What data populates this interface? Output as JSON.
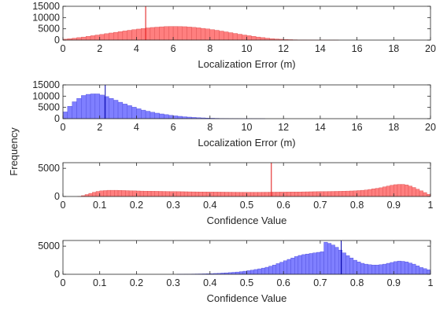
{
  "figure": {
    "ylabel": "Frequency"
  },
  "colors": {
    "red_fill": "#ff7f7f",
    "red_edge": "#d94a4a",
    "red_line": "#e01010",
    "blue_fill": "#7f7fff",
    "blue_edge": "#4a4ad9",
    "blue_line": "#0000aa",
    "axis": "#262626"
  },
  "chart_data": [
    {
      "type": "bar",
      "xlabel": "Localization Error (m)",
      "xlim": [
        0,
        20
      ],
      "ylim": [
        0,
        15000
      ],
      "xticks": [
        "0",
        "2",
        "4",
        "6",
        "8",
        "10",
        "12",
        "14",
        "16",
        "18",
        "20"
      ],
      "yticks": [
        "0",
        "5000",
        "10000",
        "15000"
      ],
      "bin_width": 0.25,
      "color": "red",
      "mean_line": 4.5,
      "values": [
        400,
        600,
        850,
        1100,
        1350,
        1650,
        1950,
        2250,
        2550,
        2850,
        3150,
        3450,
        3750,
        4050,
        4350,
        4650,
        4900,
        5150,
        5400,
        5600,
        5750,
        5900,
        6000,
        6050,
        6050,
        6000,
        5950,
        5800,
        5650,
        5450,
        5200,
        4950,
        4650,
        4350,
        4000,
        3650,
        3300,
        2950,
        2600,
        2250,
        1950,
        1650,
        1350,
        1100,
        850,
        650,
        500,
        380,
        280,
        200,
        140,
        100,
        70,
        50,
        35,
        25,
        18,
        12,
        8,
        5
      ]
    },
    {
      "type": "bar",
      "xlabel": "Localization Error (m)",
      "xlim": [
        0,
        20
      ],
      "ylim": [
        0,
        15000
      ],
      "xticks": [
        "0",
        "2",
        "4",
        "6",
        "8",
        "10",
        "12",
        "14",
        "16",
        "18",
        "20"
      ],
      "yticks": [
        "0",
        "5000",
        "10000",
        "15000"
      ],
      "bin_width": 0.25,
      "color": "blue",
      "mean_line": 2.3,
      "values": [
        3000,
        5500,
        7500,
        9000,
        10300,
        10800,
        11000,
        11000,
        10500,
        9800,
        9000,
        8200,
        7300,
        6500,
        5800,
        5100,
        4400,
        3800,
        3300,
        2850,
        2450,
        2100,
        1800,
        1500,
        1250,
        1050,
        850,
        700,
        560,
        450,
        350,
        270,
        200,
        150,
        110,
        80,
        55,
        40,
        28,
        20,
        14,
        10,
        6,
        4
      ]
    },
    {
      "type": "bar",
      "xlabel": "Confidence Value",
      "xlim": [
        0,
        1
      ],
      "ylim": [
        0,
        6000
      ],
      "xticks": [
        "0",
        "0.1",
        "0.2",
        "0.3",
        "0.4",
        "0.5",
        "0.6",
        "0.7",
        "0.8",
        "0.9",
        "1"
      ],
      "yticks": [
        "0",
        "5000"
      ],
      "bin_width": 0.01,
      "color": "red",
      "mean_line": 0.567,
      "values": [
        0,
        0,
        0,
        0,
        10,
        150,
        350,
        550,
        750,
        900,
        1000,
        1050,
        1100,
        1100,
        1100,
        1080,
        1060,
        1040,
        1020,
        1000,
        980,
        960,
        950,
        940,
        930,
        920,
        910,
        900,
        890,
        880,
        870,
        860,
        850,
        840,
        830,
        820,
        815,
        810,
        800,
        795,
        790,
        785,
        780,
        775,
        770,
        765,
        760,
        755,
        750,
        750,
        750,
        750,
        750,
        750,
        755,
        760,
        765,
        770,
        775,
        780,
        785,
        790,
        795,
        800,
        810,
        820,
        830,
        840,
        850,
        860,
        870,
        880,
        890,
        900,
        910,
        920,
        940,
        960,
        980,
        1000,
        1050,
        1100,
        1150,
        1250,
        1350,
        1450,
        1550,
        1700,
        1850,
        2000,
        2100,
        2150,
        2150,
        2050,
        1850,
        1600,
        1300,
        1000,
        700,
        400
      ]
    },
    {
      "type": "bar",
      "xlabel": "Confidence Value",
      "xlim": [
        0,
        1
      ],
      "ylim": [
        0,
        6000
      ],
      "xticks": [
        "0",
        "0.1",
        "0.2",
        "0.3",
        "0.4",
        "0.5",
        "0.6",
        "0.7",
        "0.8",
        "0.9",
        "1"
      ],
      "yticks": [
        "0",
        "5000"
      ],
      "bin_width": 0.01,
      "color": "blue",
      "mean_line": 0.757,
      "values": [
        0,
        0,
        0,
        0,
        0,
        0,
        0,
        0,
        0,
        0,
        0,
        0,
        0,
        0,
        0,
        0,
        0,
        0,
        0,
        0,
        0,
        0,
        0,
        0,
        0,
        0,
        0,
        0,
        0,
        0,
        0,
        10,
        20,
        30,
        40,
        50,
        60,
        70,
        80,
        100,
        120,
        150,
        180,
        220,
        260,
        300,
        350,
        400,
        470,
        550,
        640,
        740,
        850,
        970,
        1100,
        1250,
        1450,
        1650,
        1900,
        2150,
        2400,
        2650,
        2900,
        3150,
        3350,
        3500,
        3600,
        3700,
        3800,
        3900,
        4000,
        5700,
        5500,
        5200,
        4800,
        4300,
        3800,
        3300,
        2900,
        2500,
        2200,
        1950,
        1800,
        1700,
        1650,
        1650,
        1700,
        1800,
        1950,
        2100,
        2250,
        2350,
        2300,
        2200,
        2000,
        1800,
        1500,
        1200,
        1000,
        800
      ]
    }
  ]
}
